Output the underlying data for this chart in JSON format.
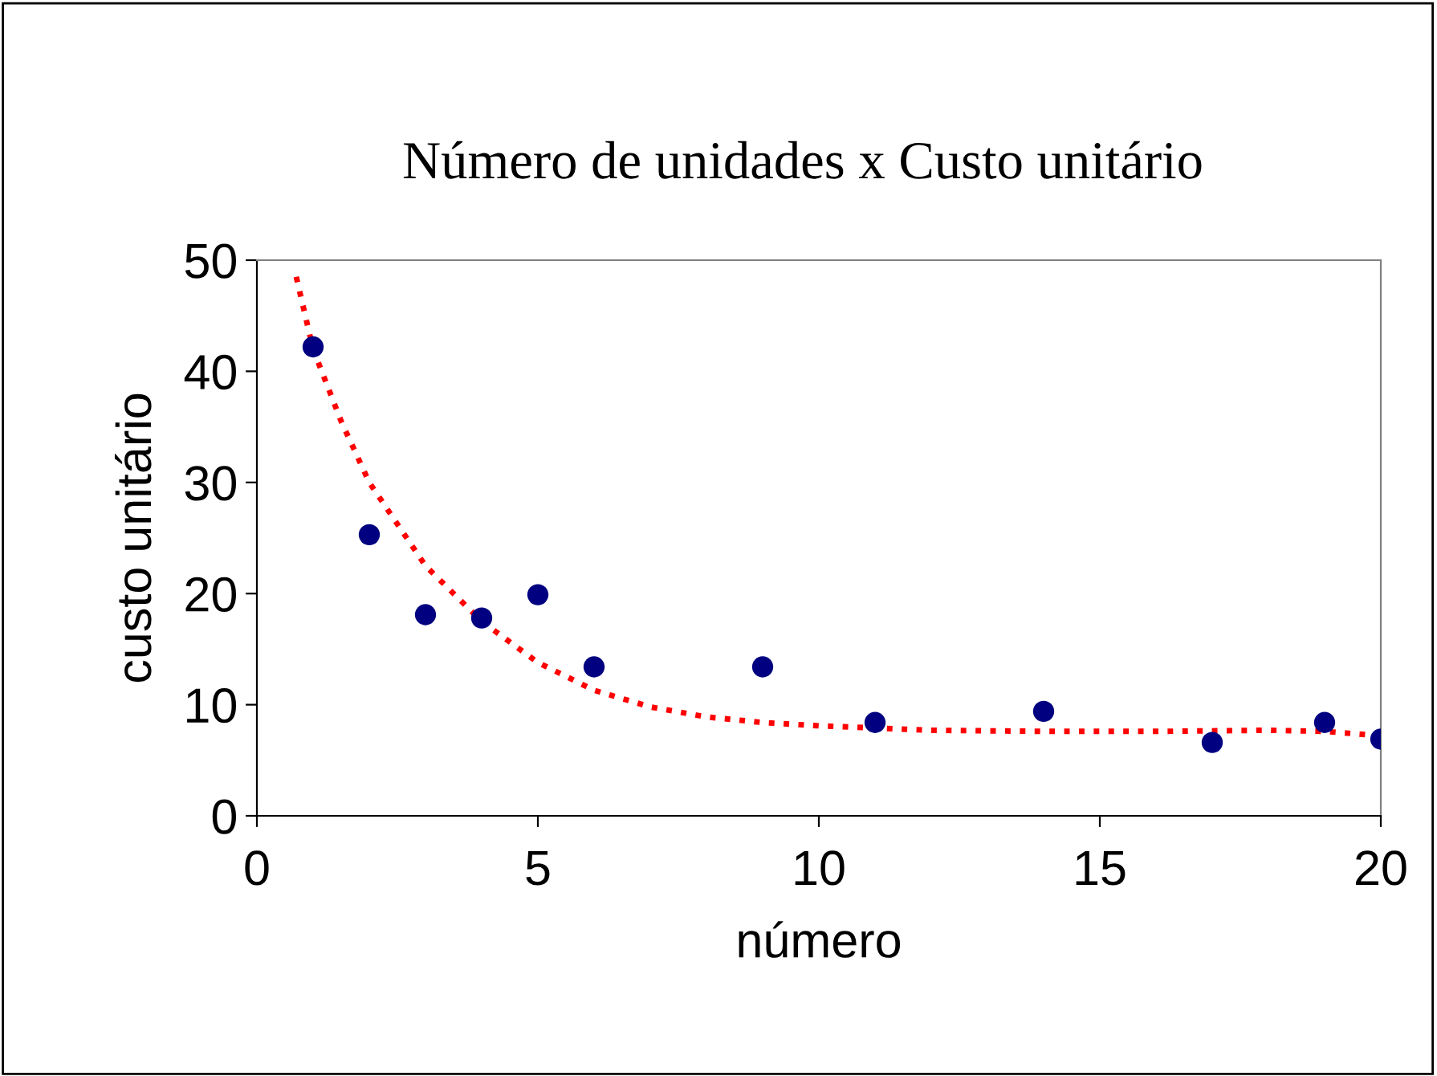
{
  "chart_data": {
    "type": "scatter",
    "title": "Número de unidades x Custo unitário",
    "xlabel": "número",
    "ylabel": "custo unitário",
    "xlim": [
      0,
      20
    ],
    "xticks": [
      0,
      5,
      10,
      15,
      20
    ],
    "ylim": [
      0,
      50
    ],
    "yticks": [
      0,
      10,
      20,
      30,
      40,
      50
    ],
    "grid": false,
    "legend": false,
    "marker": "circle",
    "series": [
      {
        "color": "#000080",
        "x": [
          1,
          2,
          3,
          4,
          5,
          6,
          9,
          11,
          14,
          17,
          19,
          20
        ],
        "values": [
          42.2,
          25.3,
          18.1,
          17.8,
          19.9,
          13.4,
          13.4,
          8.4,
          9.4,
          6.6,
          8.4,
          6.9
        ]
      },
      {
        "type": "line",
        "color": "#ff0000",
        "line_style": "dotted",
        "marker": "none",
        "x": [
          0.7,
          1,
          1.5,
          2,
          3,
          4,
          5,
          6,
          7,
          8,
          9,
          10,
          11,
          12,
          14,
          16,
          18,
          19,
          20
        ],
        "values": [
          48.5,
          42,
          35.5,
          30,
          22.5,
          17.5,
          13.8,
          11.3,
          9.8,
          8.9,
          8.4,
          8.1,
          7.9,
          7.7,
          7.6,
          7.6,
          7.7,
          7.6,
          7.2
        ]
      }
    ]
  }
}
